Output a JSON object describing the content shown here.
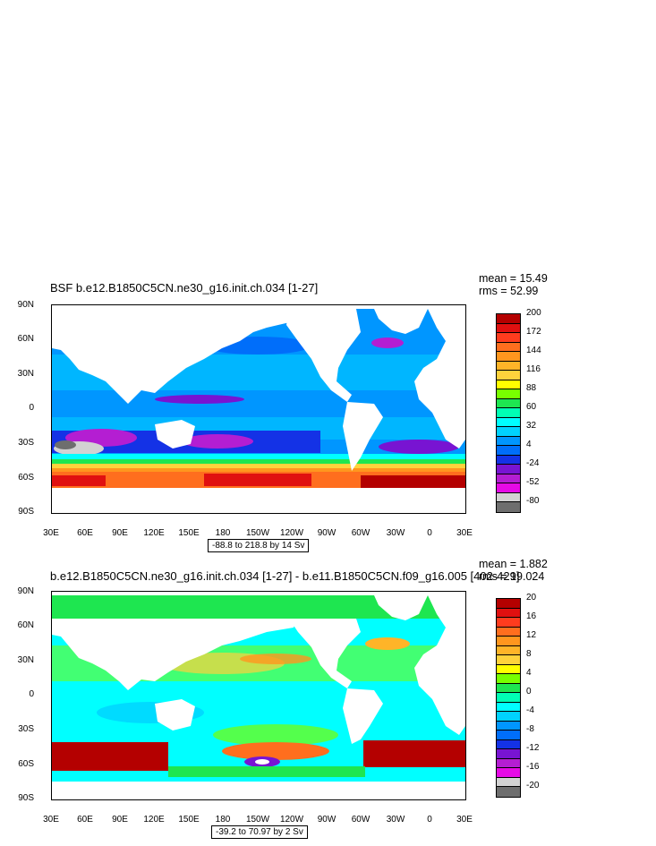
{
  "panels": [
    {
      "title": "BSF b.e12.B1850C5CN.ne30_g16.init.ch.034 [1-27]",
      "mean": "mean = 15.49",
      "rms": "rms = 52.99",
      "range_label": "-88.8 to 218.8 by 14 Sv",
      "lat_labels": [
        "90N",
        "60N",
        "30N",
        "0",
        "30S",
        "60S",
        "90S"
      ],
      "lon_labels": [
        "30E",
        "60E",
        "90E",
        "120E",
        "150E",
        "180",
        "150W",
        "120W",
        "90W",
        "60W",
        "30W",
        "0",
        "30E"
      ],
      "colorbar_labels": [
        "200",
        "172",
        "144",
        "116",
        "88",
        "60",
        "32",
        "4",
        "-24",
        "-52",
        "-80"
      ],
      "colorbar_colors": [
        "#b40000",
        "#e01010",
        "#ff3c1e",
        "#ff6e1e",
        "#ff961e",
        "#ffb428",
        "#ffd23c",
        "#ffff00",
        "#78ff00",
        "#1ee650",
        "#00ffb4",
        "#00ffff",
        "#00d2ff",
        "#0096ff",
        "#006efa",
        "#1432e6",
        "#7814d2",
        "#b41ed2",
        "#e60ae6",
        "#d2d2d2",
        "#6e6e6e"
      ]
    },
    {
      "title": "b.e12.B1850C5CN.ne30_g16.init.ch.034 [1-27] - b.e11.B1850C5CN.f09_g16.005 [402-429]",
      "mean": "mean = 1.882",
      "rms": "rms = 19.024",
      "range_label": "-39.2 to 70.97 by 2 Sv",
      "lat_labels": [
        "90N",
        "60N",
        "30N",
        "0",
        "30S",
        "60S",
        "90S"
      ],
      "lon_labels": [
        "30E",
        "60E",
        "90E",
        "120E",
        "150E",
        "180",
        "150W",
        "120W",
        "90W",
        "60W",
        "30W",
        "0",
        "30E"
      ],
      "colorbar_labels": [
        "20",
        "16",
        "12",
        "8",
        "4",
        "0",
        "-4",
        "-8",
        "-12",
        "-16",
        "-20"
      ],
      "colorbar_colors": [
        "#b40000",
        "#e01010",
        "#ff3c1e",
        "#ff6e1e",
        "#ff961e",
        "#ffb428",
        "#ffd23c",
        "#ffff00",
        "#78ff00",
        "#1ee650",
        "#00ffb4",
        "#00ffff",
        "#00d2ff",
        "#0096ff",
        "#006efa",
        "#1432e6",
        "#7814d2",
        "#b41ed2",
        "#e60ae6",
        "#d2d2d2",
        "#6e6e6e"
      ]
    }
  ]
}
